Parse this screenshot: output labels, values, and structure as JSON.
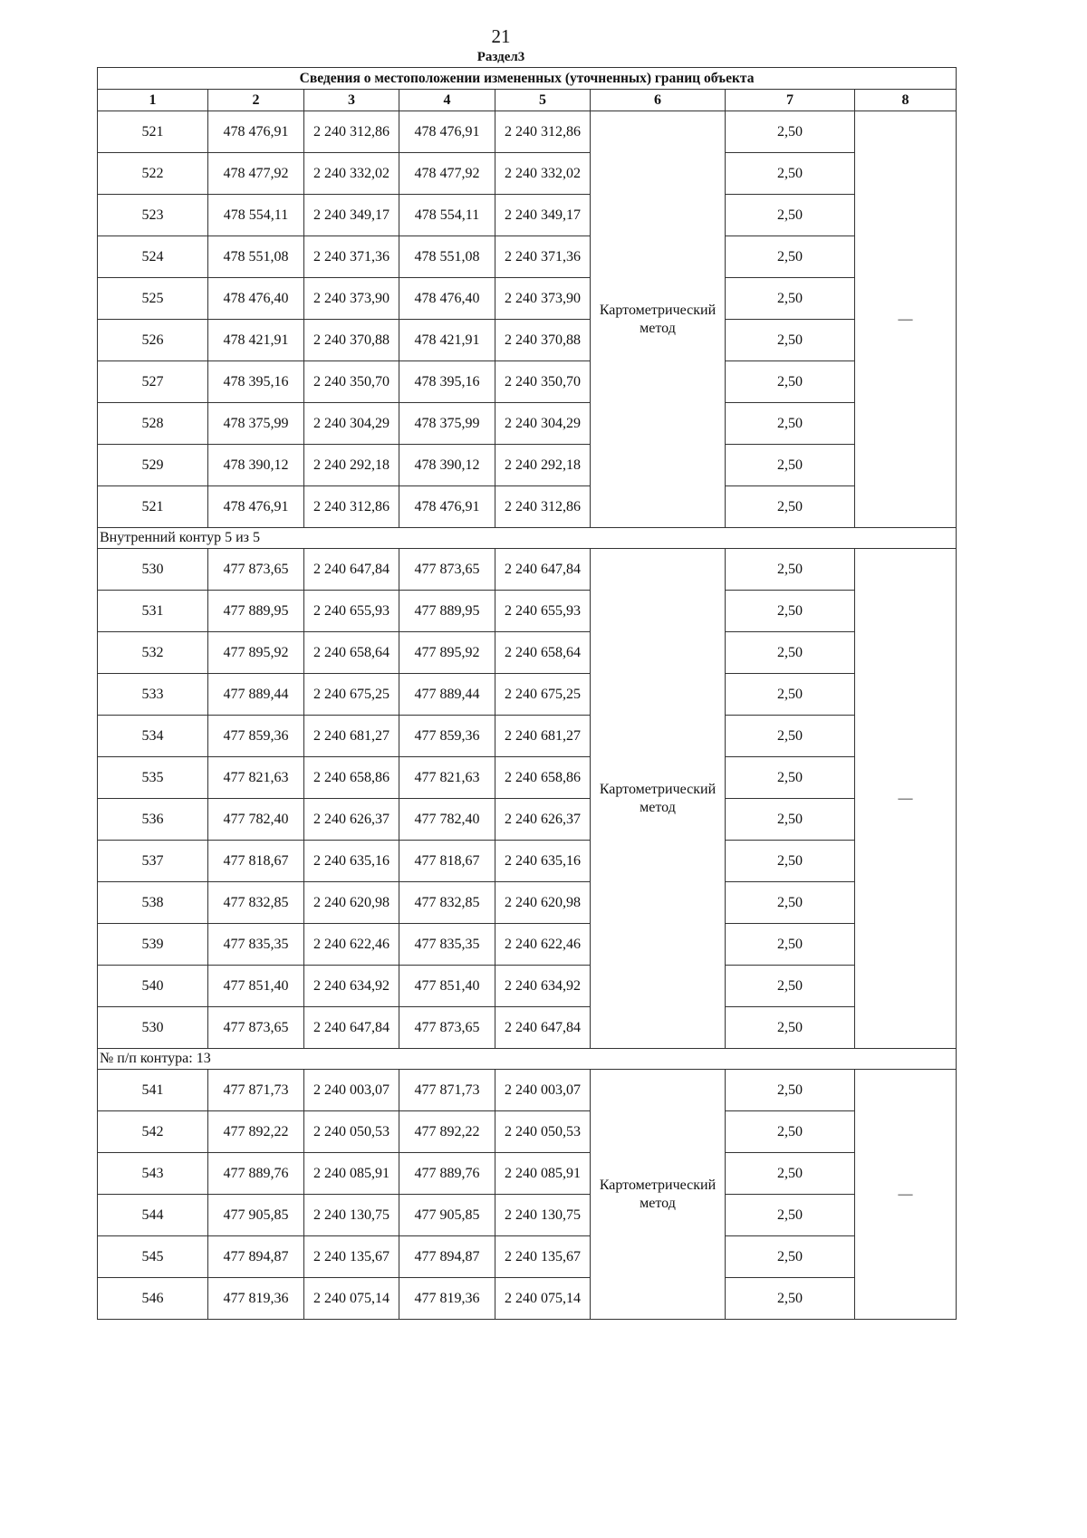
{
  "page_number": "21",
  "section_title": "Раздел3",
  "table": {
    "title": "Сведения о местоположении измененных (уточненных) границ объекта",
    "column_headers": [
      "1",
      "2",
      "3",
      "4",
      "5",
      "6",
      "7",
      "8"
    ],
    "blocks": [
      {
        "label": null,
        "method": "Картометрический метод",
        "col8": "—",
        "rows": [
          [
            "521",
            "478 476,91",
            "2 240 312,86",
            "478 476,91",
            "2 240 312,86",
            "2,50"
          ],
          [
            "522",
            "478 477,92",
            "2 240 332,02",
            "478 477,92",
            "2 240 332,02",
            "2,50"
          ],
          [
            "523",
            "478 554,11",
            "2 240 349,17",
            "478 554,11",
            "2 240 349,17",
            "2,50"
          ],
          [
            "524",
            "478 551,08",
            "2 240 371,36",
            "478 551,08",
            "2 240 371,36",
            "2,50"
          ],
          [
            "525",
            "478 476,40",
            "2 240 373,90",
            "478 476,40",
            "2 240 373,90",
            "2,50"
          ],
          [
            "526",
            "478 421,91",
            "2 240 370,88",
            "478 421,91",
            "2 240 370,88",
            "2,50"
          ],
          [
            "527",
            "478 395,16",
            "2 240 350,70",
            "478 395,16",
            "2 240 350,70",
            "2,50"
          ],
          [
            "528",
            "478 375,99",
            "2 240 304,29",
            "478 375,99",
            "2 240 304,29",
            "2,50"
          ],
          [
            "529",
            "478 390,12",
            "2 240 292,18",
            "478 390,12",
            "2 240 292,18",
            "2,50"
          ],
          [
            "521",
            "478 476,91",
            "2 240 312,86",
            "478 476,91",
            "2 240 312,86",
            "2,50"
          ]
        ]
      },
      {
        "label": "Внутренний контур 5 из 5",
        "method": "Картометрический метод",
        "col8": "—",
        "rows": [
          [
            "530",
            "477 873,65",
            "2 240 647,84",
            "477 873,65",
            "2 240 647,84",
            "2,50"
          ],
          [
            "531",
            "477 889,95",
            "2 240 655,93",
            "477 889,95",
            "2 240 655,93",
            "2,50"
          ],
          [
            "532",
            "477 895,92",
            "2 240 658,64",
            "477 895,92",
            "2 240 658,64",
            "2,50"
          ],
          [
            "533",
            "477 889,44",
            "2 240 675,25",
            "477 889,44",
            "2 240 675,25",
            "2,50"
          ],
          [
            "534",
            "477 859,36",
            "2 240 681,27",
            "477 859,36",
            "2 240 681,27",
            "2,50"
          ],
          [
            "535",
            "477 821,63",
            "2 240 658,86",
            "477 821,63",
            "2 240 658,86",
            "2,50"
          ],
          [
            "536",
            "477 782,40",
            "2 240 626,37",
            "477 782,40",
            "2 240 626,37",
            "2,50"
          ],
          [
            "537",
            "477 818,67",
            "2 240 635,16",
            "477 818,67",
            "2 240 635,16",
            "2,50"
          ],
          [
            "538",
            "477 832,85",
            "2 240 620,98",
            "477 832,85",
            "2 240 620,98",
            "2,50"
          ],
          [
            "539",
            "477 835,35",
            "2 240 622,46",
            "477 835,35",
            "2 240 622,46",
            "2,50"
          ],
          [
            "540",
            "477 851,40",
            "2 240 634,92",
            "477 851,40",
            "2 240 634,92",
            "2,50"
          ],
          [
            "530",
            "477 873,65",
            "2 240 647,84",
            "477 873,65",
            "2 240 647,84",
            "2,50"
          ]
        ]
      },
      {
        "label": "№ п/п контура: 13",
        "method": "Картометрический метод",
        "col8": "—",
        "rows": [
          [
            "541",
            "477 871,73",
            "2 240 003,07",
            "477 871,73",
            "2 240 003,07",
            "2,50"
          ],
          [
            "542",
            "477 892,22",
            "2 240 050,53",
            "477 892,22",
            "2 240 050,53",
            "2,50"
          ],
          [
            "543",
            "477 889,76",
            "2 240 085,91",
            "477 889,76",
            "2 240 085,91",
            "2,50"
          ],
          [
            "544",
            "477 905,85",
            "2 240 130,75",
            "477 905,85",
            "2 240 130,75",
            "2,50"
          ],
          [
            "545",
            "477 894,87",
            "2 240 135,67",
            "477 894,87",
            "2 240 135,67",
            "2,50"
          ],
          [
            "546",
            "477 819,36",
            "2 240 075,14",
            "477 819,36",
            "2 240 075,14",
            "2,50"
          ]
        ]
      }
    ]
  }
}
